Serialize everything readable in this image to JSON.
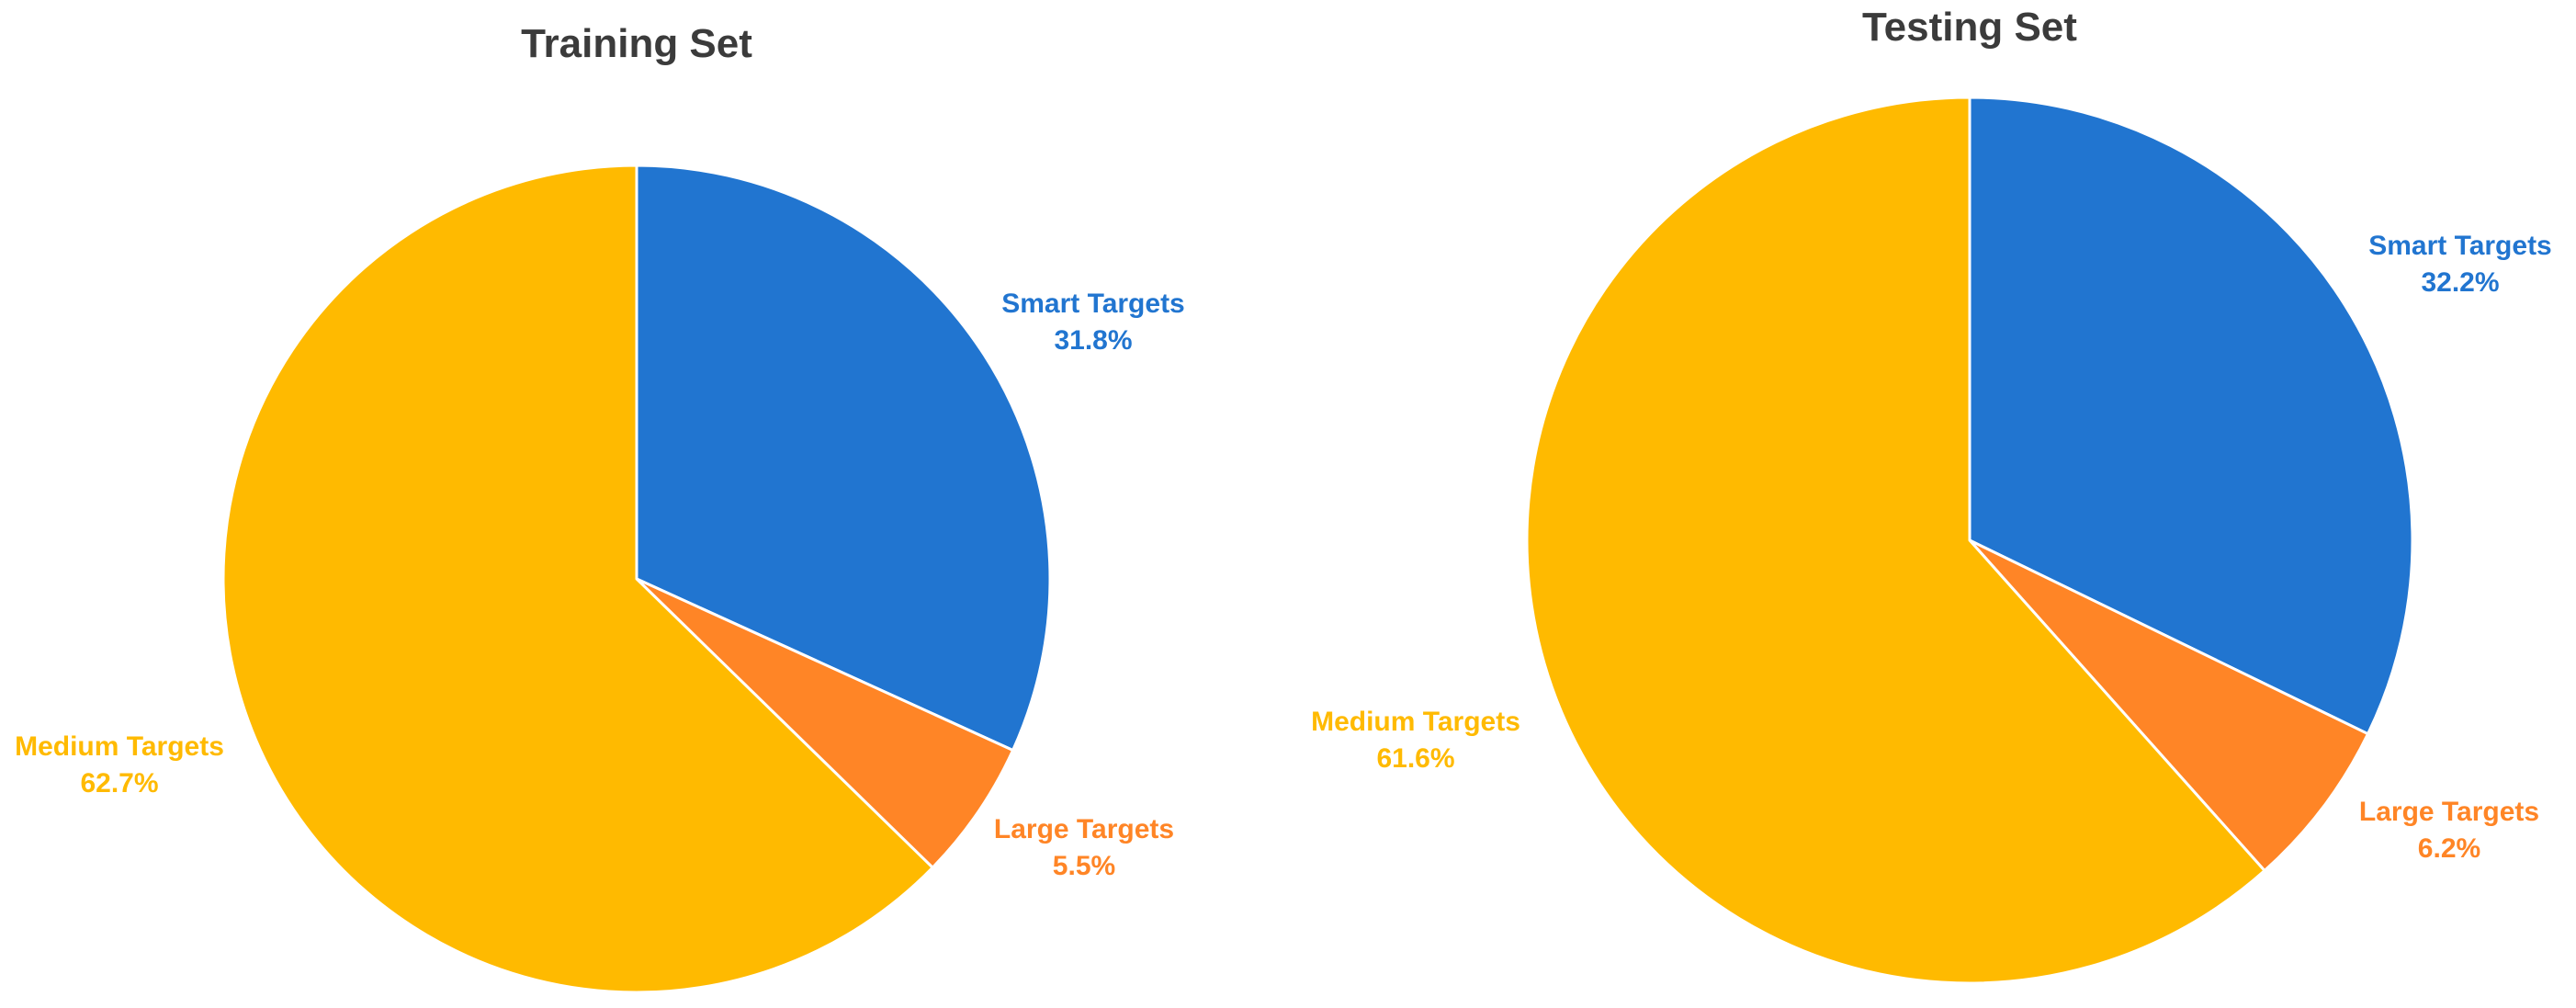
{
  "chart_data": [
    {
      "type": "pie",
      "title": "Training Set",
      "slices": [
        {
          "label": "Smart Targets",
          "value": 31.8,
          "value_label": "31.8%",
          "color": "#2175D0"
        },
        {
          "label": "Large Targets",
          "value": 5.5,
          "value_label": "5.5%",
          "color": "#FF8526"
        },
        {
          "label": "Medium Targets",
          "value": 62.7,
          "value_label": "62.7%",
          "color": "#FFBA00"
        }
      ],
      "start_angle": "12 o'clock",
      "direction": "clockwise"
    },
    {
      "type": "pie",
      "title": "Testing Set",
      "slices": [
        {
          "label": "Smart Targets",
          "value": 32.2,
          "value_label": "32.2%",
          "color": "#2175D0"
        },
        {
          "label": "Large Targets",
          "value": 6.2,
          "value_label": "6.2%",
          "color": "#FF8526"
        },
        {
          "label": "Medium Targets",
          "value": 61.6,
          "value_label": "61.6%",
          "color": "#FFBA00"
        }
      ],
      "start_angle": "12 o'clock",
      "direction": "clockwise"
    }
  ]
}
